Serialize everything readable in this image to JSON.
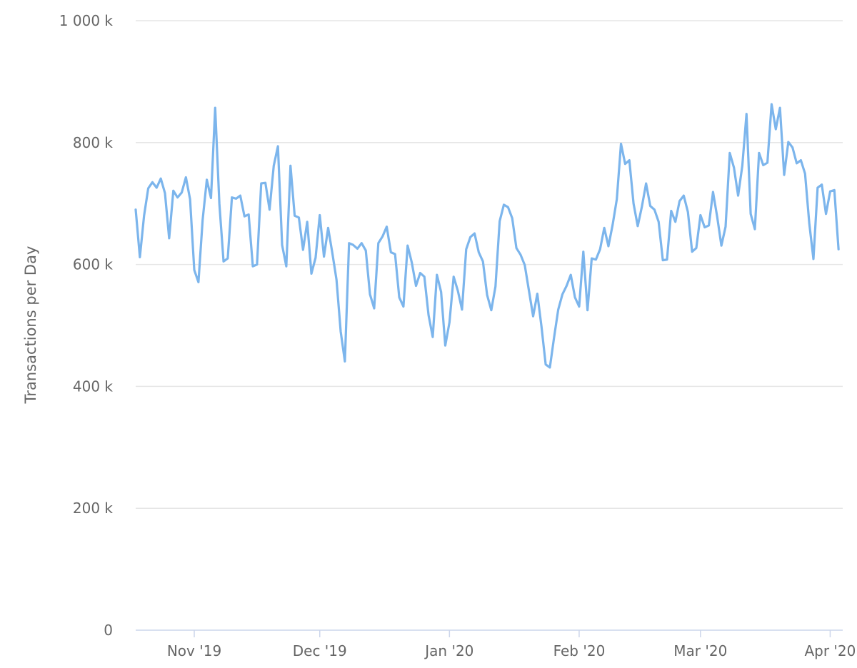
{
  "chart_data": {
    "type": "line",
    "title": "",
    "xlabel": "",
    "ylabel": "Transactions per Day",
    "ylim": [
      0,
      1000000
    ],
    "y_ticks": [
      {
        "value": 0,
        "label": "0"
      },
      {
        "value": 200000,
        "label": "200 k"
      },
      {
        "value": 400000,
        "label": "400 k"
      },
      {
        "value": 600000,
        "label": "600 k"
      },
      {
        "value": 800000,
        "label": "800 k"
      },
      {
        "value": 1000000,
        "label": "1 000 k"
      }
    ],
    "x_range": [
      "2019-10-18",
      "2020-04-04"
    ],
    "x_ticks": [
      {
        "date": "2019-11-01",
        "label": "Nov '19"
      },
      {
        "date": "2019-12-01",
        "label": "Dec '19"
      },
      {
        "date": "2020-01-01",
        "label": "Jan '20"
      },
      {
        "date": "2020-02-01",
        "label": "Feb '20"
      },
      {
        "date": "2020-03-01",
        "label": "Mar '20"
      },
      {
        "date": "2020-04-01",
        "label": "Apr '20"
      }
    ],
    "grid": true,
    "legend": "none",
    "series": [
      {
        "color": "#7cb5ec",
        "start_date": "2019-10-18",
        "values": [
          690000,
          612000,
          680000,
          725000,
          735000,
          726000,
          741000,
          717000,
          643000,
          721000,
          710000,
          718000,
          743000,
          707000,
          591000,
          571000,
          673000,
          739000,
          709000,
          857000,
          700000,
          605000,
          610000,
          710000,
          708000,
          713000,
          679000,
          682000,
          597000,
          600000,
          733000,
          734000,
          690000,
          762000,
          794000,
          632000,
          597000,
          762000,
          680000,
          677000,
          624000,
          670000,
          585000,
          611000,
          681000,
          613000,
          660000,
          619000,
          575000,
          490000,
          441000,
          635000,
          632000,
          626000,
          635000,
          623000,
          551000,
          528000,
          635000,
          646000,
          662000,
          620000,
          617000,
          546000,
          531000,
          631000,
          603000,
          565000,
          586000,
          580000,
          517000,
          481000,
          583000,
          555000,
          467000,
          505000,
          580000,
          557000,
          526000,
          625000,
          645000,
          651000,
          620000,
          605000,
          550000,
          525000,
          564000,
          671000,
          698000,
          694000,
          676000,
          627000,
          616000,
          599000,
          557000,
          515000,
          552000,
          498000,
          436000,
          431000,
          480000,
          526000,
          551000,
          565000,
          583000,
          546000,
          531000,
          621000,
          525000,
          610000,
          608000,
          625000,
          660000,
          630000,
          665000,
          707000,
          798000,
          765000,
          771000,
          700000,
          663000,
          695000,
          733000,
          696000,
          690000,
          670000,
          607000,
          608000,
          688000,
          670000,
          704000,
          713000,
          686000,
          621000,
          627000,
          681000,
          661000,
          664000,
          719000,
          678000,
          631000,
          662000,
          783000,
          759000,
          713000,
          762000,
          847000,
          683000,
          658000,
          783000,
          763000,
          767000,
          863000,
          822000,
          857000,
          747000,
          801000,
          792000,
          766000,
          771000,
          749000,
          668000,
          609000,
          726000,
          731000,
          683000,
          720000,
          722000,
          625000
        ]
      }
    ]
  }
}
